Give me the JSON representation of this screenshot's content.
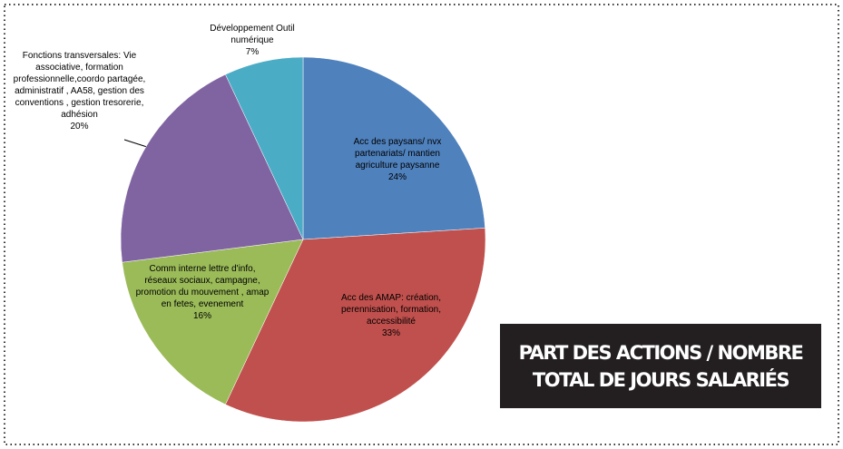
{
  "chart_data": {
    "type": "pie",
    "categories": [
      "Acc des paysans/ nvx partenariats/ mantien agriculture paysanne",
      "Acc des AMAP: création, perennisation, formation, accessibilité",
      "Comm interne lettre d'info, réseaux sociaux, campagne, promotion du mouvement , amap en fetes, evenement",
      "Fonctions transversales: Vie associative, formation professionnelle,coordo partagée, administratif , AA58, gestion des conventions , gestion tresorerie, adhésion",
      "Développement Outil numérique"
    ],
    "values": [
      24,
      33,
      16,
      20,
      7
    ],
    "value_labels": [
      "24%",
      "33%",
      "16%",
      "20%",
      "7%"
    ],
    "colors": [
      "#4f81bd",
      "#c0504d",
      "#9bbb59",
      "#8064a2",
      "#4bacc6"
    ],
    "title": "PART DES ACTIONS / NOMBRE TOTAL DE JOURS SALARIÉS"
  }
}
